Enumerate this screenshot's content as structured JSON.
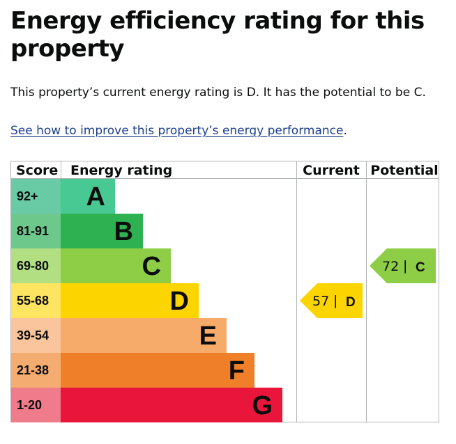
{
  "heading": "Energy efficiency rating for this property",
  "summary": "This property’s current energy rating is D. It has the potential to be C.",
  "improve_link": "See how to improve this property’s energy performance",
  "improve_link_suffix": ".",
  "chart_data": {
    "type": "table",
    "columns": [
      "Score",
      "Energy rating",
      "Current",
      "Potential"
    ],
    "bands": [
      {
        "score": "92+",
        "letter": "A",
        "color": "#48c892",
        "score_color": "#68cba6"
      },
      {
        "score": "81-91",
        "letter": "B",
        "color": "#2db151",
        "score_color": "#6dc88c"
      },
      {
        "score": "69-80",
        "letter": "C",
        "color": "#8dce46",
        "score_color": "#b1df82"
      },
      {
        "score": "55-68",
        "letter": "D",
        "color": "#fcd400",
        "score_color": "#fde461"
      },
      {
        "score": "39-54",
        "letter": "E",
        "color": "#f6ab6b",
        "score_color": "#fac59c"
      },
      {
        "score": "21-38",
        "letter": "F",
        "color": "#ef8029",
        "score_color": "#f5ac70"
      },
      {
        "score": "1-20",
        "letter": "G",
        "color": "#e9153b",
        "score_color": "#f07b8b"
      }
    ],
    "current": {
      "value": 57,
      "separator": "|",
      "letter": "D",
      "band": "D",
      "color": "#fcd400"
    },
    "potential": {
      "value": 72,
      "separator": "|",
      "letter": "C",
      "band": "C",
      "color": "#8dce46"
    }
  }
}
